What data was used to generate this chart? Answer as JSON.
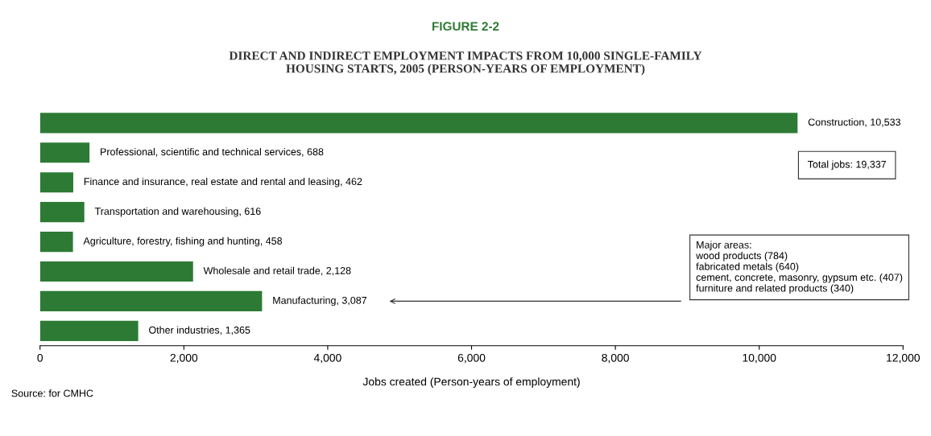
{
  "chart_data": {
    "type": "bar",
    "orientation": "horizontal",
    "title": "FIGURE 2-2",
    "subtitle": "DIRECT AND INDIRECT EMPLOYMENT IMPACTS FROM 10,000 SINGLE-FAMILY\nHOUSING STARTS, 2005 (PERSON-YEARS OF EMPLOYMENT)",
    "xlabel": "Jobs created (Person-years of employment)",
    "categories": [
      null,
      null,
      null,
      null,
      null,
      null,
      null,
      null
    ],
    "values": [
      10533,
      688,
      462,
      616,
      458,
      2128,
      3087,
      1365
    ],
    "value_labels": [
      "Construction, 10,533",
      "Professional, scientific and technical services, 688",
      "Finance and insurance, real estate and rental and leasing, 462",
      "Transportation and warehousing, 616",
      "Agriculture, forestry, fishing and hunting, 458",
      "Wholesale and retail trade, 2,128",
      "Manufacturing, 3,087",
      "Other industries, 1,365"
    ],
    "color": "#2d7a34",
    "xlim": [
      0,
      12000
    ],
    "xticks": [
      0,
      {
        "value": 2000,
        "label": "2,000"
      },
      {
        "value": 4000,
        "label": "4,000"
      },
      {
        "value": 6000,
        "label": "6,000"
      },
      {
        "value": 8000,
        "label": "8,000"
      },
      {
        "value": 10000,
        "label": "10,000"
      },
      {
        "value": 12000,
        "label": "12,000"
      }
    ],
    "grid": false,
    "annotations": [
      "Total jobs: 19,337",
      "Major areas:\nwood products (784)\nfabricated metals (640)\ncement, concrete, masonry, gypsum etc. (407)\nfurniture and related products (340)",
      "Source: for CMHC"
    ]
  }
}
